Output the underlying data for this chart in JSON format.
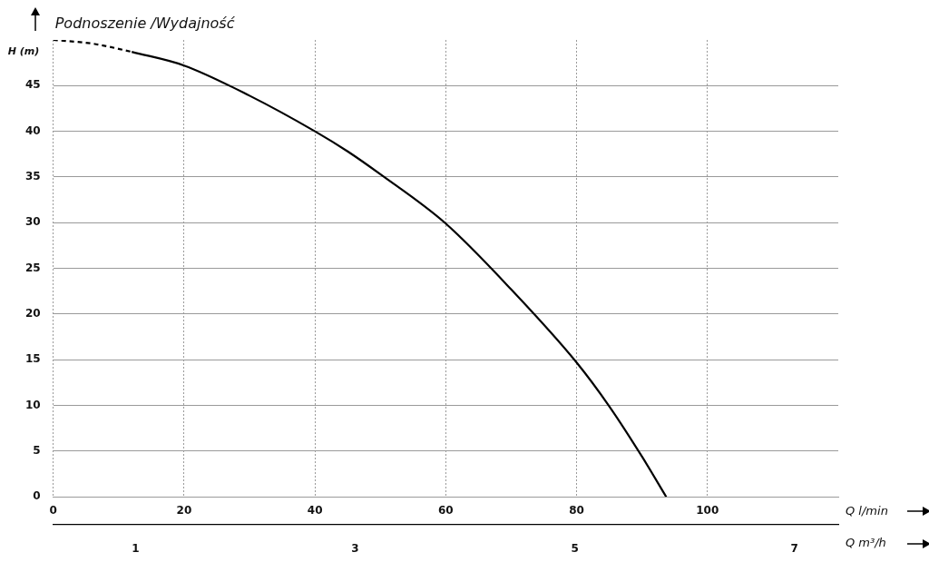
{
  "chart_data": {
    "type": "line",
    "title": "Podnoszenie /Wydajność",
    "ylabel": "H (m)",
    "xlabel": "Q l/min",
    "x2label": "Q m³/h",
    "series": [
      {
        "color": "#000000",
        "line_style": "dashed",
        "x": [
          0,
          6,
          12
        ],
        "values": [
          50,
          49.6,
          48.7
        ]
      },
      {
        "color": "#000000",
        "line_style": "solid",
        "x": [
          12,
          20,
          30,
          40,
          45,
          50,
          60,
          70,
          80,
          85,
          90,
          93.7
        ],
        "values": [
          48.7,
          47.2,
          43.9,
          40,
          37.8,
          35.3,
          29.9,
          22.7,
          14.7,
          9.9,
          4.4,
          0
        ]
      }
    ],
    "xlim": [
      0,
      120
    ],
    "xticks": [
      0,
      20,
      40,
      60,
      80,
      100
    ],
    "ylim": [
      0,
      50
    ],
    "yticks": [
      0,
      5,
      10,
      15,
      20,
      25,
      30,
      35,
      40,
      45
    ],
    "x2lim": [
      0.25,
      7.4
    ],
    "x2ticks": [
      1,
      3,
      5,
      7
    ],
    "grid": true,
    "legend": false,
    "marker": "none"
  }
}
